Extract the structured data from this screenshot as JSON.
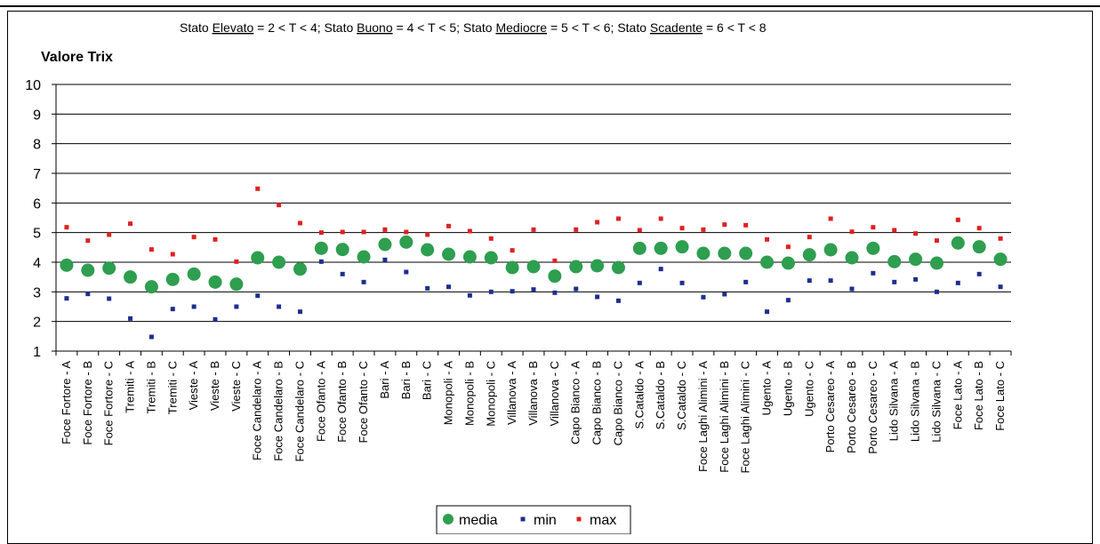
{
  "chart_data": {
    "type": "scatter",
    "subtitle": {
      "parts": [
        {
          "text": "Stato ",
          "u": false
        },
        {
          "text": "Elevato",
          "u": true
        },
        {
          "text": " = 2 < T < 4; Stato ",
          "u": false
        },
        {
          "text": "Buono",
          "u": true
        },
        {
          "text": " = 4 < T < 5; Stato ",
          "u": false
        },
        {
          "text": "Mediocre",
          "u": true
        },
        {
          "text": " = 5 < T < 6; Stato ",
          "u": false
        },
        {
          "text": "Scadente",
          "u": true
        },
        {
          "text": " = 6 < T < 8",
          "u": false
        }
      ]
    },
    "ylabel": "Valore Trix",
    "xlabel": "",
    "ylim": [
      1,
      10
    ],
    "yticks": [
      1,
      2,
      3,
      4,
      5,
      6,
      7,
      8,
      9,
      10
    ],
    "grid": true,
    "legend_position": "bottom",
    "categories": [
      "Foce Fortore - A",
      "Foce Fortore - B",
      "Foce Fortore - C",
      "Tremiti - A",
      "Tremiti - B",
      "Tremiti - C",
      "Vieste - A",
      "Vieste - B",
      "Vieste - C",
      "Foce Candelaro - A",
      "Foce Candelaro - B",
      "Foce Candelaro - C",
      "Foce Ofanto - A",
      "Foce Ofanto - B",
      "Foce Ofanto - C",
      "Bari - A",
      "Bari - B",
      "Bari - C",
      "Monopoli - A",
      "Monopoli - B",
      "Monopoli - C",
      "Villanova - A",
      "Villanova - B",
      "Villanova - C",
      "Capo Bianco - A",
      "Capo Bianco - B",
      "Capo Bianco - C",
      "S.Cataldo - A",
      "S.Cataldo - B",
      "S.Cataldo - C",
      "Foce Laghi Alimini - A",
      "Foce Laghi Alimini - B",
      "Foce Laghi Alimini - C",
      "Ugento - A",
      "Ugento - B",
      "Ugento - C",
      "Porto Cesareo - A",
      "Porto Cesareo - B",
      "Porto Cesareo - C",
      "Lido Silvana - A",
      "Lido Silvana - B",
      "Lido Silvana - C",
      "Foce Lato - A",
      "Foce Lato - B",
      "Foce Lato - C"
    ],
    "series": [
      {
        "name": "media",
        "color": "#2e9e4f",
        "marker": "circle",
        "values": [
          3.9,
          3.73,
          3.8,
          3.5,
          3.17,
          3.42,
          3.6,
          3.33,
          3.26,
          4.15,
          4.0,
          3.77,
          4.47,
          4.43,
          4.18,
          4.6,
          4.68,
          4.42,
          4.27,
          4.18,
          4.15,
          3.82,
          3.85,
          3.53,
          3.85,
          3.88,
          3.82,
          4.47,
          4.47,
          4.52,
          4.3,
          4.3,
          4.3,
          4.0,
          3.97,
          4.25,
          4.42,
          4.15,
          4.47,
          4.02,
          4.1,
          3.97,
          4.65,
          4.52,
          4.1
        ]
      },
      {
        "name": "min",
        "color": "#1c2f8f",
        "marker": "square",
        "values": [
          2.78,
          2.93,
          2.77,
          2.1,
          1.48,
          2.42,
          2.5,
          2.07,
          2.5,
          2.87,
          2.5,
          2.33,
          4.02,
          3.6,
          3.33,
          4.08,
          3.67,
          3.12,
          3.17,
          2.88,
          3.0,
          3.02,
          3.08,
          2.97,
          3.1,
          2.83,
          2.7,
          3.3,
          3.77,
          3.3,
          2.82,
          2.92,
          3.33,
          2.33,
          2.72,
          3.38,
          3.38,
          3.1,
          3.63,
          3.33,
          3.42,
          3.0,
          3.3,
          3.6,
          3.17
        ]
      },
      {
        "name": "max",
        "color": "#e02020",
        "marker": "square",
        "values": [
          5.18,
          4.73,
          4.93,
          5.3,
          4.43,
          4.27,
          4.85,
          4.77,
          4.02,
          6.48,
          5.93,
          5.32,
          5.0,
          5.02,
          5.02,
          5.1,
          5.02,
          4.93,
          5.22,
          5.05,
          4.8,
          4.4,
          5.1,
          4.05,
          5.1,
          5.35,
          5.47,
          5.08,
          5.47,
          5.15,
          5.1,
          5.27,
          5.25,
          4.77,
          4.52,
          4.85,
          5.47,
          5.03,
          5.18,
          5.08,
          4.97,
          4.73,
          5.43,
          5.15,
          4.8
        ]
      }
    ]
  }
}
